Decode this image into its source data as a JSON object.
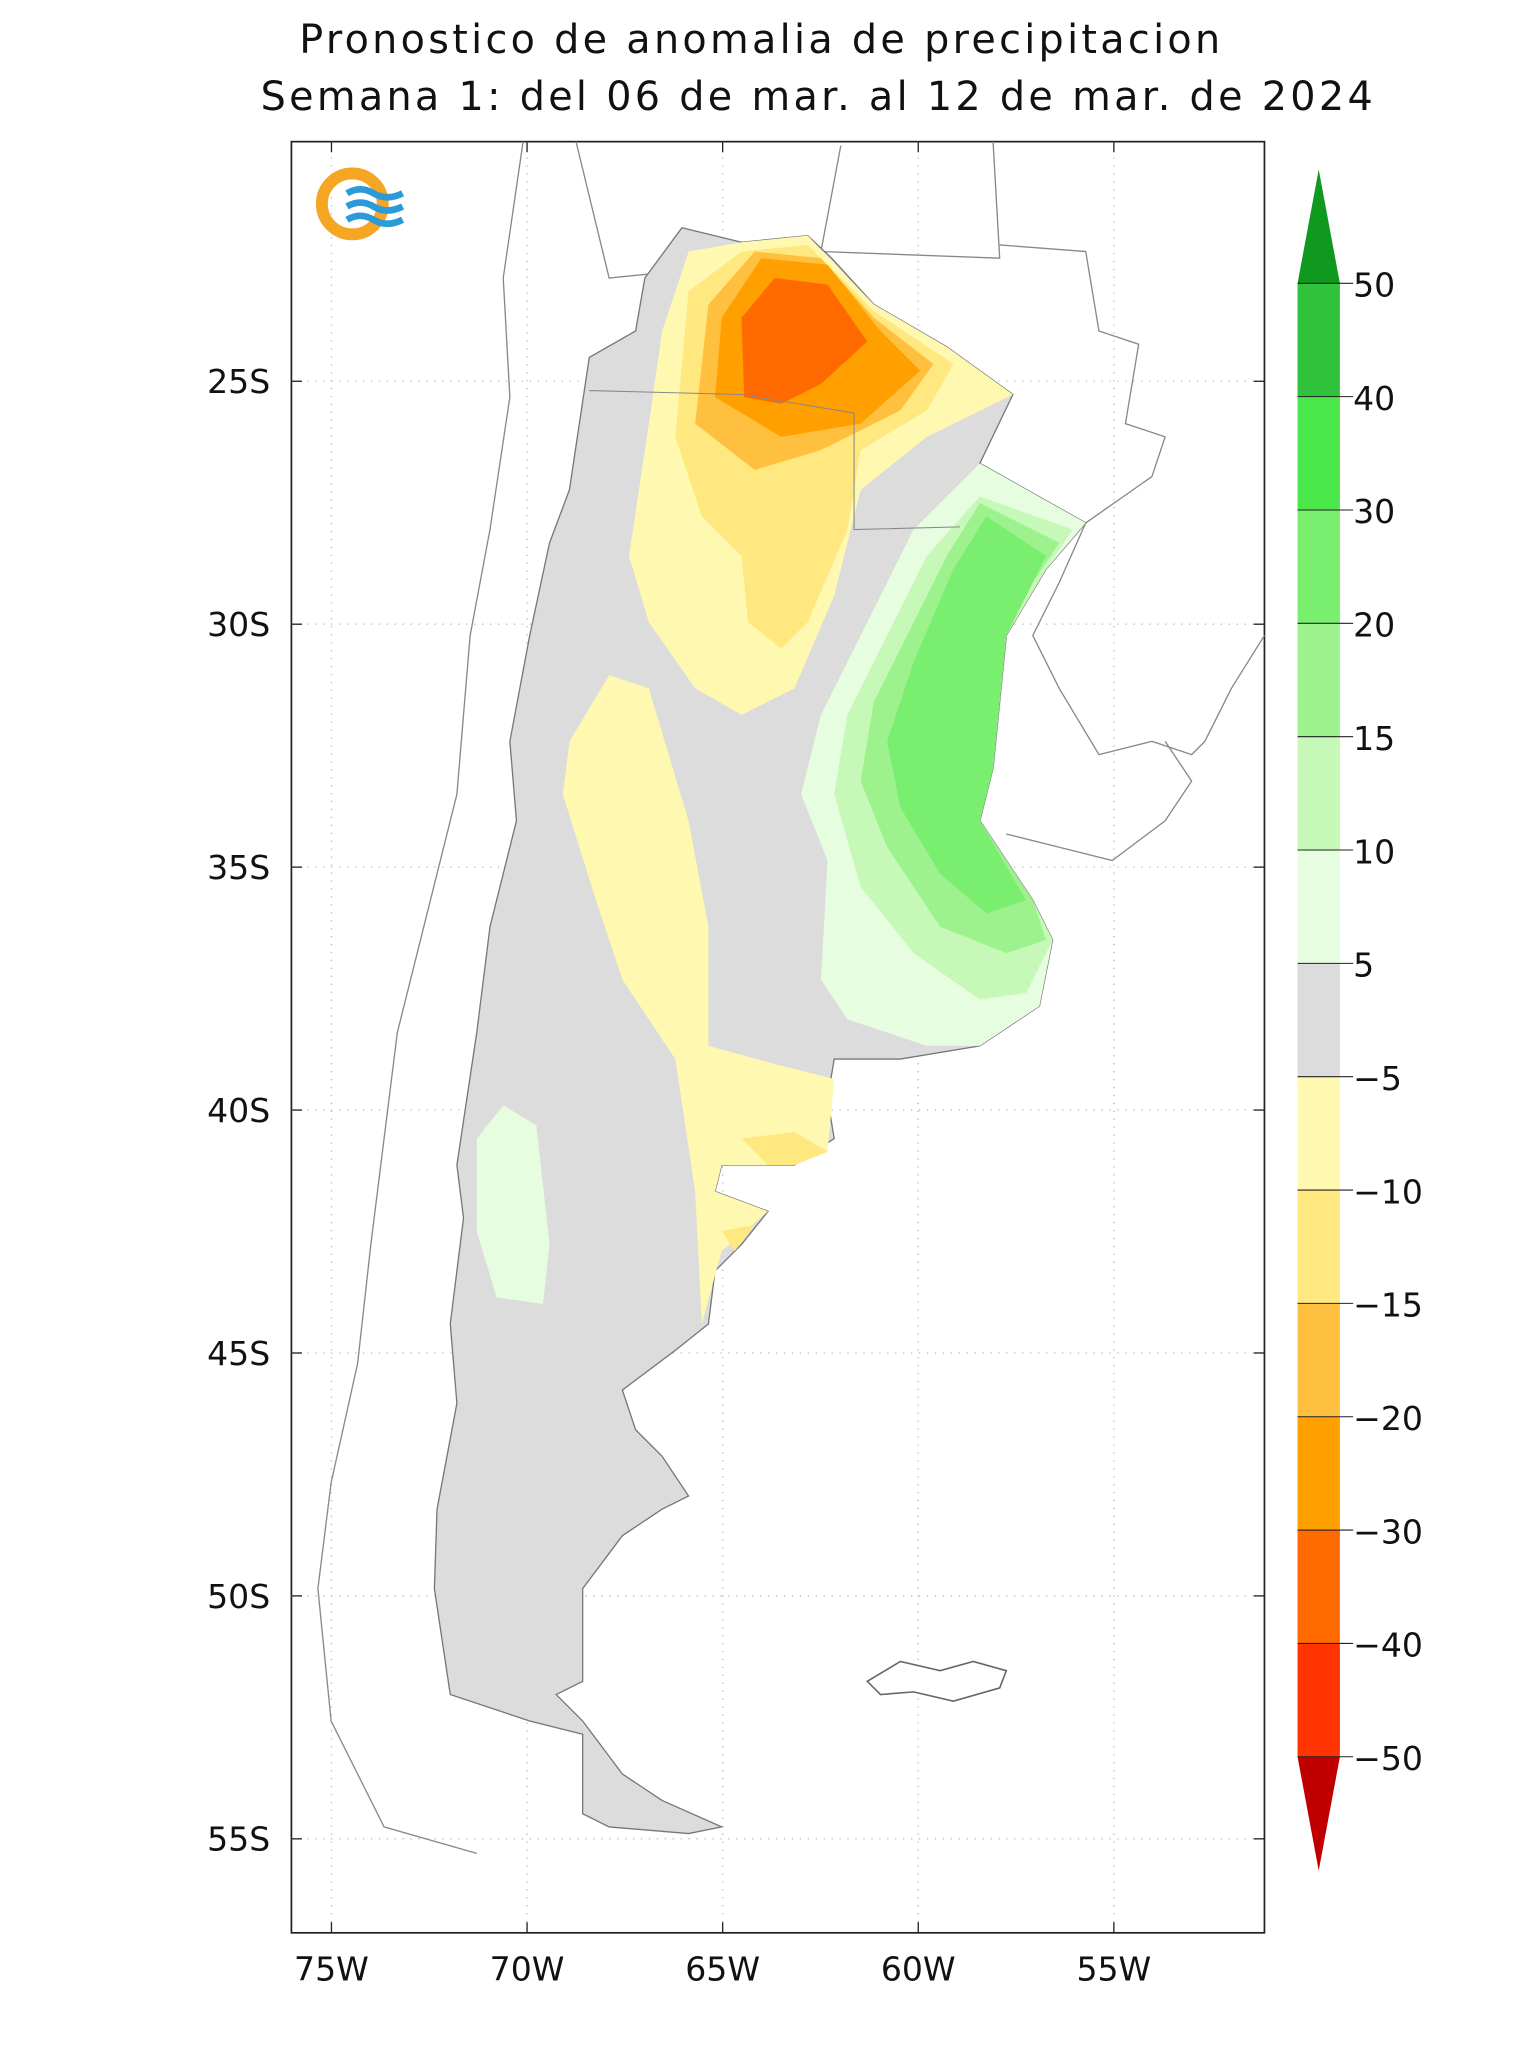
{
  "header": {
    "title_line1": "Pronostico de anomalia de precipitacion",
    "title_line2": "Semana 1: del 06 de mar. al 12 de mar. de 2024"
  },
  "lat_ticks": [
    {
      "value": -25,
      "label": "25S"
    },
    {
      "value": -30,
      "label": "30S"
    },
    {
      "value": -35,
      "label": "35S"
    },
    {
      "value": -40,
      "label": "40S"
    },
    {
      "value": -45,
      "label": "45S"
    },
    {
      "value": -50,
      "label": "50S"
    },
    {
      "value": -55,
      "label": "55S"
    }
  ],
  "lon_ticks": [
    {
      "value": -75,
      "label": "75W"
    },
    {
      "value": -70,
      "label": "70W"
    },
    {
      "value": -65,
      "label": "65W"
    },
    {
      "value": -60,
      "label": "60W"
    },
    {
      "value": -55,
      "label": "55W"
    }
  ],
  "colorbar": {
    "levels": [
      50,
      40,
      30,
      20,
      15,
      10,
      5,
      {
        "value": -5,
        "label": "−5"
      },
      {
        "value": -10,
        "label": "−10"
      },
      {
        "value": -15,
        "label": "−15"
      },
      {
        "value": -20,
        "label": "−20"
      },
      {
        "value": -30,
        "label": "−30"
      },
      {
        "value": -40,
        "label": "−40"
      },
      {
        "value": -50,
        "label": "−50"
      }
    ],
    "colors": [
      "#0f9a1f",
      "#2fc23a",
      "#4ae84a",
      "#7aee6e",
      "#9ef28e",
      "#c6f8b8",
      "#e6fde0",
      "#dcdcdc",
      "#fff8b0",
      "#ffe880",
      "#ffc040",
      "#ffa000",
      "#ff6a00",
      "#ff3400",
      "#c00000"
    ]
  }
}
